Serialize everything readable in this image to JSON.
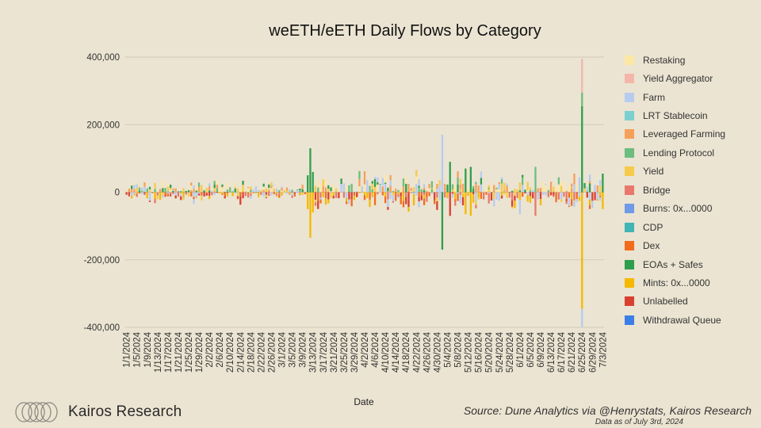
{
  "chart_data": {
    "type": "bar",
    "stacked": true,
    "title": "weETH/eETH Daily Flows by Category",
    "xlabel": "Date",
    "ylabel": "",
    "ylim": [
      -400000,
      400000
    ],
    "yticks": [
      400000,
      200000,
      0,
      -200000,
      -400000
    ],
    "ytick_labels": [
      "400,000",
      "200,000",
      "0",
      "-200,000",
      "-400,000"
    ],
    "x_start": "2024-01-01",
    "x_days": 185,
    "x_tick_labels": [
      "1/1/2024",
      "1/5/2024",
      "1/9/2024",
      "1/13/2024",
      "1/17/2024",
      "1/21/2024",
      "1/25/2024",
      "1/29/2024",
      "2/2/2024",
      "2/6/2024",
      "2/10/2024",
      "2/14/2024",
      "2/18/2024",
      "2/22/2024",
      "2/26/2024",
      "3/1/2024",
      "3/5/2024",
      "3/9/2024",
      "3/13/2024",
      "3/17/2024",
      "3/21/2024",
      "3/25/2024",
      "3/29/2024",
      "4/2/2024",
      "4/6/2024",
      "4/10/2024",
      "4/14/2024",
      "4/18/2024",
      "4/22/2024",
      "4/26/2024",
      "4/30/2024",
      "5/4/2024",
      "5/8/2024",
      "5/12/2024",
      "5/16/2024",
      "5/20/2024",
      "5/24/2024",
      "5/28/2024",
      "6/1/2024",
      "6/5/2024",
      "6/9/2024",
      "6/13/2024",
      "6/17/2024",
      "6/21/2024",
      "6/25/2024",
      "6/29/2024",
      "7/3/2024"
    ],
    "grid": true,
    "legend_position": "right",
    "series": [
      {
        "name": "Restaking",
        "color": "#fde7a4"
      },
      {
        "name": "Yield Aggregator",
        "color": "#f4b6a8"
      },
      {
        "name": "Farm",
        "color": "#b7cbf0"
      },
      {
        "name": "LRT Stablecoin",
        "color": "#7ccfcf"
      },
      {
        "name": "Leveraged Farming",
        "color": "#f5a05a"
      },
      {
        "name": "Lending Protocol",
        "color": "#6dbd7f"
      },
      {
        "name": "Yield",
        "color": "#f6ca4a"
      },
      {
        "name": "Bridge",
        "color": "#e8786b"
      },
      {
        "name": "Burns: 0x...0000",
        "color": "#6f9ae8"
      },
      {
        "name": "CDP",
        "color": "#3fb5b5"
      },
      {
        "name": "Dex",
        "color": "#f26b1d"
      },
      {
        "name": "EOAs + Safes",
        "color": "#2f9e4c"
      },
      {
        "name": "Mints: 0x...0000",
        "color": "#f5b800"
      },
      {
        "name": "Unlabelled",
        "color": "#d9402f"
      },
      {
        "name": "Withdrawal Queue",
        "color": "#3b7ee8"
      }
    ],
    "notable_days": [
      {
        "date": "3/11/2024",
        "EOAs + Safes": 50000,
        "Mints: 0x...0000": -50000
      },
      {
        "date": "3/12/2024",
        "EOAs + Safes": 130000,
        "Mints: 0x...0000": -135000
      },
      {
        "date": "3/13/2024",
        "EOAs + Safes": 60000,
        "Mints: 0x...0000": -60000
      },
      {
        "date": "5/2/2024",
        "Farm": 170000,
        "EOAs + Safes": -170000
      },
      {
        "date": "5/5/2024",
        "EOAs + Safes": 90000,
        "Unlabelled": -70000
      },
      {
        "date": "5/11/2024",
        "EOAs + Safes": 70000,
        "Mints: 0x...0000": -65000
      },
      {
        "date": "5/13/2024",
        "EOAs + Safes": 75000,
        "Mints: 0x...0000": -70000
      },
      {
        "date": "6/7/2024",
        "Lending Protocol": 75000,
        "Bridge": -70000
      },
      {
        "date": "6/25/2024",
        "EOAs + Safes": 255000,
        "Lending Protocol": 40000,
        "Yield Aggregator": 100000,
        "Mints: 0x...0000": -345000,
        "Farm": -55000
      },
      {
        "date": "7/3/2024",
        "EOAs + Safes": 55000,
        "Mints: 0x...0000": -50000
      }
    ]
  },
  "footer": {
    "brand": "Kairos Research",
    "source": "Source: Dune Analytics via @Henrystats, Kairos Research",
    "as_of": "Data as of July 3rd, 2024"
  }
}
